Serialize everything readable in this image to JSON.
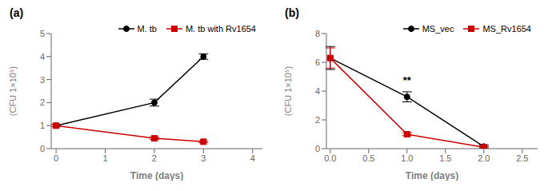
{
  "chart_data": [
    {
      "type": "line",
      "title": "(a)",
      "x": [
        0,
        2,
        3
      ],
      "xlabel": "Time (days)",
      "ylabel": "(CFU 1×10⁵)",
      "xlim": [
        -0.1,
        4.2
      ],
      "ylim": [
        0,
        5
      ],
      "xticks": [
        0,
        1,
        2,
        3,
        4
      ],
      "yticks": [
        0,
        1,
        2,
        3,
        4,
        5
      ],
      "legend": "upper right",
      "series": [
        {
          "name": "M. tb",
          "color": "#000000",
          "marker": "circle",
          "values": [
            1.0,
            2.0,
            4.0
          ],
          "yerr": [
            0.05,
            0.15,
            0.12
          ]
        },
        {
          "name": "M. tb with Rv1654",
          "color": "#cc0000",
          "marker": "square",
          "values": [
            1.0,
            0.45,
            0.3
          ],
          "yerr": [
            0.05,
            0.05,
            0.04
          ]
        }
      ]
    },
    {
      "type": "line",
      "title": "(b)",
      "x": [
        0,
        1,
        2
      ],
      "xlabel": "Time (days)",
      "ylabel": "(CFU 1×10⁵)",
      "xlim": [
        -0.05,
        2.7
      ],
      "ylim": [
        0,
        8
      ],
      "xticks": [
        {
          "value": 0.0,
          "label": "0.0"
        },
        {
          "value": 0.5,
          "label": "0.5"
        },
        {
          "value": 1.0,
          "label": "1.0"
        },
        {
          "value": 1.5,
          "label": "1.5"
        },
        {
          "value": 2.0,
          "label": "2.0"
        },
        {
          "value": 2.5,
          "label": "2.5"
        }
      ],
      "yticks": [
        0,
        2,
        4,
        6,
        8
      ],
      "legend": "upper right",
      "series": [
        {
          "name": "MS_vec",
          "color": "#000000",
          "marker": "circle",
          "values": [
            6.3,
            3.6,
            0.15
          ],
          "yerr": [
            0.8,
            0.35,
            0.1
          ]
        },
        {
          "name": "MS_Rv1654",
          "color": "#cc0000",
          "marker": "square",
          "values": [
            6.3,
            1.0,
            0.1
          ],
          "yerr": [
            0.7,
            0.1,
            0.05
          ]
        }
      ],
      "annotations": [
        {
          "text": "**",
          "x": 1.0,
          "y": 4.2,
          "color": "#000000"
        }
      ]
    }
  ]
}
